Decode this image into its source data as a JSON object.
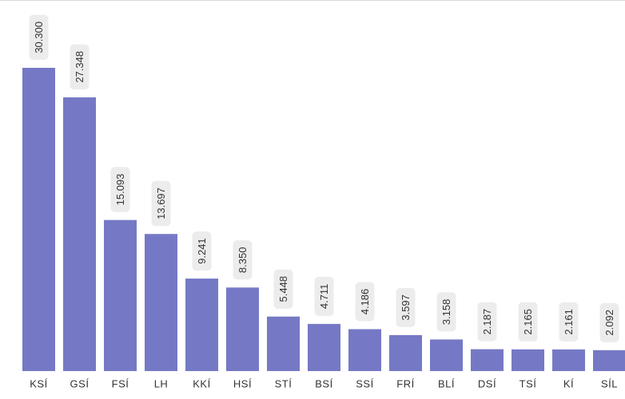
{
  "chart_data": {
    "type": "bar",
    "categories": [
      "KSÍ",
      "GSÍ",
      "FSÍ",
      "LH",
      "KKÍ",
      "HSÍ",
      "STÍ",
      "BSÍ",
      "SSÍ",
      "FRÍ",
      "BLÍ",
      "DSÍ",
      "TSÍ",
      "KÍ",
      "SÍL"
    ],
    "values": [
      30300,
      27348,
      15093,
      13697,
      9241,
      8350,
      5448,
      4711,
      4186,
      3597,
      3158,
      2187,
      2165,
      2161,
      2092
    ],
    "data_labels": [
      "30.300",
      "27.348",
      "15.093",
      "13.697",
      "9.241",
      "8.350",
      "5.448",
      "4.711",
      "4.186",
      "3.597",
      "3.158",
      "2.187",
      "2.165",
      "2.161",
      "2.092"
    ],
    "title": "",
    "xlabel": "",
    "ylabel": "",
    "ylim": [
      0,
      30300
    ],
    "grid": false,
    "bar_color": "#7579c5",
    "label_background": "#ececec"
  }
}
